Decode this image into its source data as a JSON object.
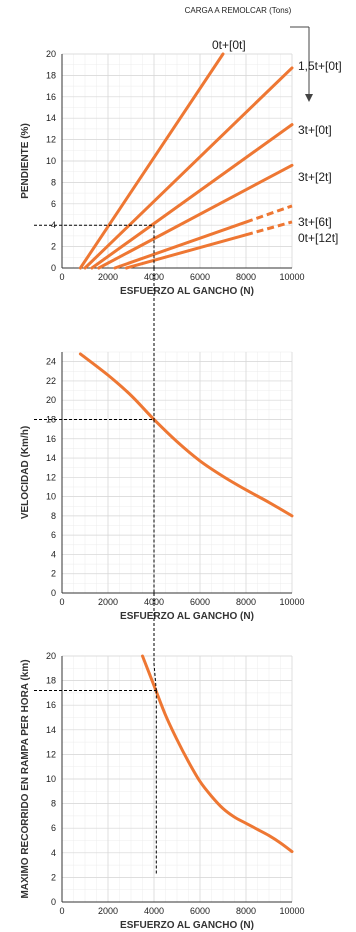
{
  "header": {
    "title": "CARGA A REMOLCAR (Tons)"
  },
  "colors": {
    "curve": "#ee7733",
    "grid": "#d6d6d6",
    "guide": "#000000"
  },
  "chart_data": [
    {
      "type": "line",
      "xlabel": "ESFUERZO AL GANCHO (N)",
      "ylabel": "PENDIENTE (%)",
      "xlim": [
        0,
        10000
      ],
      "ylim": [
        0,
        20
      ],
      "xticks": [
        0,
        2000,
        4000,
        6000,
        8000,
        10000
      ],
      "yticks": [
        0,
        2,
        4,
        6,
        8,
        10,
        12,
        14,
        16,
        18,
        20
      ],
      "grid": true,
      "guide": {
        "x": 4000,
        "y": 4
      },
      "series": [
        {
          "name": "0t+[0t]",
          "x": [
            800,
            7000
          ],
          "y": [
            0,
            20
          ],
          "dashed_from_x": null
        },
        {
          "name": "1,5t+[0t]",
          "x": [
            1000,
            10000
          ],
          "y": [
            0,
            18.7
          ],
          "dashed_from_x": null
        },
        {
          "name": "3t+[0t]",
          "x": [
            1300,
            10000
          ],
          "y": [
            0,
            13.4
          ],
          "dashed_from_x": null
        },
        {
          "name": "3t+[2t]",
          "x": [
            1600,
            10000
          ],
          "y": [
            0,
            9.6
          ],
          "dashed_from_x": null
        },
        {
          "name": "3t+[6t]",
          "x": [
            2300,
            10000
          ],
          "y": [
            0,
            5.8
          ],
          "dashed_from_x": 8000
        },
        {
          "name": "0t+[12t]",
          "x": [
            2800,
            10000
          ],
          "y": [
            0,
            4.3
          ],
          "dashed_from_x": 8000
        }
      ]
    },
    {
      "type": "line",
      "xlabel": "ESFUERZO AL GANCHO (N)",
      "ylabel": "VELOCIDAD (Km/h)",
      "xlim": [
        0,
        10000
      ],
      "ylim": [
        0,
        25
      ],
      "xticks": [
        0,
        2000,
        4000,
        6000,
        8000,
        10000
      ],
      "yticks": [
        0,
        2,
        4,
        6,
        8,
        10,
        12,
        14,
        16,
        18,
        20,
        22,
        24
      ],
      "grid": true,
      "guide": {
        "x": 4000,
        "y": 18
      },
      "series": [
        {
          "x": [
            800,
            2000,
            3000,
            4000,
            5000,
            6000,
            7000,
            8000,
            9000,
            10000
          ],
          "y": [
            24.8,
            22.6,
            20.5,
            18.0,
            15.7,
            13.7,
            12.1,
            10.7,
            9.4,
            8.0
          ]
        }
      ]
    },
    {
      "type": "line",
      "xlabel": "ESFUERZO AL GANCHO (N)",
      "ylabel": "MAXIMO RECORRIDO EN RAMPA PER HORA  (km)",
      "xlim": [
        0,
        10000
      ],
      "ylim": [
        0,
        20
      ],
      "xticks": [
        0,
        2000,
        4000,
        6000,
        8000,
        10000
      ],
      "yticks": [
        0,
        2,
        4,
        6,
        8,
        10,
        12,
        14,
        16,
        18,
        20
      ],
      "grid": true,
      "guide": {
        "x": 4100,
        "y": 17.2,
        "drop_to_y": 2.2
      },
      "series": [
        {
          "x": [
            3500,
            4000,
            4500,
            5000,
            5500,
            6000,
            6500,
            7000,
            7500,
            8000,
            8500,
            9000,
            9500,
            10000
          ],
          "y": [
            20.0,
            17.6,
            15.2,
            13.2,
            11.4,
            9.8,
            8.6,
            7.6,
            6.9,
            6.4,
            5.9,
            5.4,
            4.8,
            4.1
          ]
        }
      ]
    }
  ]
}
